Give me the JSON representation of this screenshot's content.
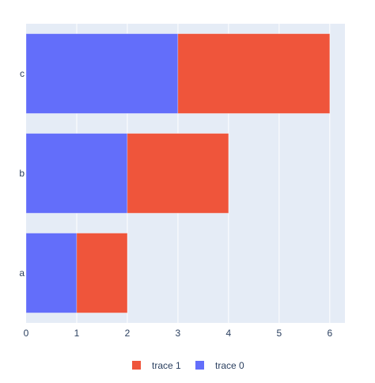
{
  "chart_data": {
    "type": "bar",
    "orientation": "horizontal",
    "barmode": "stack",
    "categories": [
      "a",
      "b",
      "c"
    ],
    "series": [
      {
        "name": "trace 0",
        "values": [
          1,
          2,
          3
        ],
        "color": "#636efa"
      },
      {
        "name": "trace 1",
        "values": [
          1,
          2,
          3
        ],
        "color": "#ef553b"
      }
    ],
    "xlim": [
      0,
      6.3
    ],
    "xticks": [
      0,
      1,
      2,
      3,
      4,
      5,
      6
    ],
    "grid": true,
    "legend": {
      "placement": "bottom",
      "order": [
        "trace 1",
        "trace 0"
      ]
    },
    "colors": {
      "plot_background": "#e5ecf6",
      "gridline": "#ffffff",
      "tick_text": "#2a3f5f"
    }
  }
}
